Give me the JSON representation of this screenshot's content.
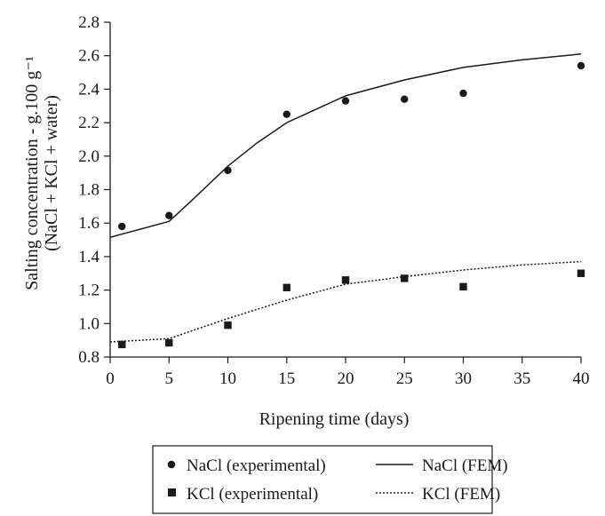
{
  "chart_data": {
    "type": "scatter",
    "xlabel": "Ripening time (days)",
    "ylabel_line1": "Salting concentration - g.100 g⁻¹",
    "ylabel_line2": "(NaCl + KCl + water)",
    "xlim": [
      0,
      40
    ],
    "ylim": [
      0.8,
      2.8
    ],
    "x_ticks": [
      "0",
      "5",
      "10",
      "15",
      "20",
      "25",
      "30",
      "35",
      "40"
    ],
    "y_ticks": [
      "0.8",
      "1.0",
      "1.2",
      "1.4",
      "1.6",
      "1.8",
      "2.0",
      "2.2",
      "2.4",
      "2.6",
      "2.8"
    ],
    "grid": false,
    "legend_position": "bottom",
    "series": [
      {
        "name": "NaCl (experimental)",
        "kind": "points",
        "marker": "circle",
        "x": [
          1,
          5,
          10,
          15,
          20,
          25,
          30,
          40
        ],
        "y": [
          1.58,
          1.645,
          1.915,
          2.25,
          2.33,
          2.34,
          2.375,
          2.54
        ]
      },
      {
        "name": "NaCl (FEM)",
        "kind": "line",
        "style": "solid",
        "x": [
          0,
          5,
          7,
          10,
          12.5,
          15,
          20,
          25,
          30,
          35,
          40
        ],
        "y": [
          1.515,
          1.61,
          1.74,
          1.94,
          2.08,
          2.2,
          2.36,
          2.455,
          2.53,
          2.575,
          2.61
        ]
      },
      {
        "name": "KCl (experimental)",
        "kind": "points",
        "marker": "square",
        "x": [
          1,
          5,
          10,
          15,
          20,
          25,
          30,
          40
        ],
        "y": [
          0.875,
          0.885,
          0.99,
          1.215,
          1.26,
          1.27,
          1.22,
          1.3
        ]
      },
      {
        "name": "KCl (FEM)",
        "kind": "line",
        "style": "dotted",
        "x": [
          0,
          5,
          10,
          15,
          20,
          25,
          30,
          35,
          40
        ],
        "y": [
          0.89,
          0.91,
          1.03,
          1.14,
          1.235,
          1.28,
          1.32,
          1.35,
          1.37
        ]
      }
    ]
  }
}
